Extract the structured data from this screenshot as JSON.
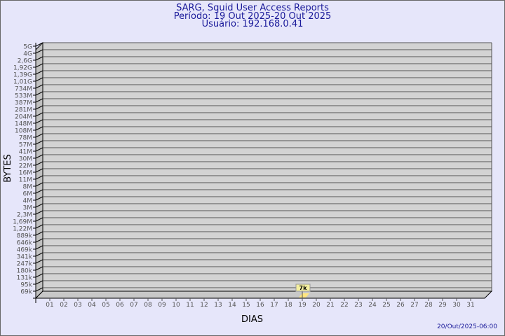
{
  "title": "SARG, Squid User Access Reports",
  "period": "Período: 19 Out 2025-20 Out 2025",
  "user": "Usuário: 192.168.0.41",
  "footer": "20/Out/2025-06:00",
  "colors": {
    "title": "#1a1a9a",
    "plot": "#d3d3d3",
    "bar": "#ffe680",
    "background": "#e6e6fa"
  },
  "chart_data": {
    "type": "bar",
    "xlabel": "DIAS",
    "ylabel": "BYTES",
    "y_scale": "log",
    "y_tick_labels": [
      "5G",
      "4G",
      "2,6G",
      "1,92G",
      "1,39G",
      "1,01G",
      "734M",
      "533M",
      "387M",
      "281M",
      "204M",
      "148M",
      "108M",
      "78M",
      "57M",
      "41M",
      "30M",
      "22M",
      "16M",
      "11M",
      "8M",
      "6M",
      "4M",
      "3M",
      "2,3M",
      "1,69M",
      "1,22M",
      "889k",
      "646k",
      "469k",
      "341k",
      "247k",
      "180k",
      "131k",
      "95k",
      "69k"
    ],
    "categories": [
      "01",
      "02",
      "03",
      "04",
      "05",
      "06",
      "07",
      "08",
      "09",
      "10",
      "11",
      "12",
      "13",
      "14",
      "15",
      "16",
      "17",
      "18",
      "19",
      "20",
      "21",
      "22",
      "23",
      "24",
      "25",
      "26",
      "27",
      "28",
      "29",
      "30",
      "31"
    ],
    "bars": [
      {
        "x": "19",
        "label": "7k"
      }
    ],
    "grid": true
  }
}
